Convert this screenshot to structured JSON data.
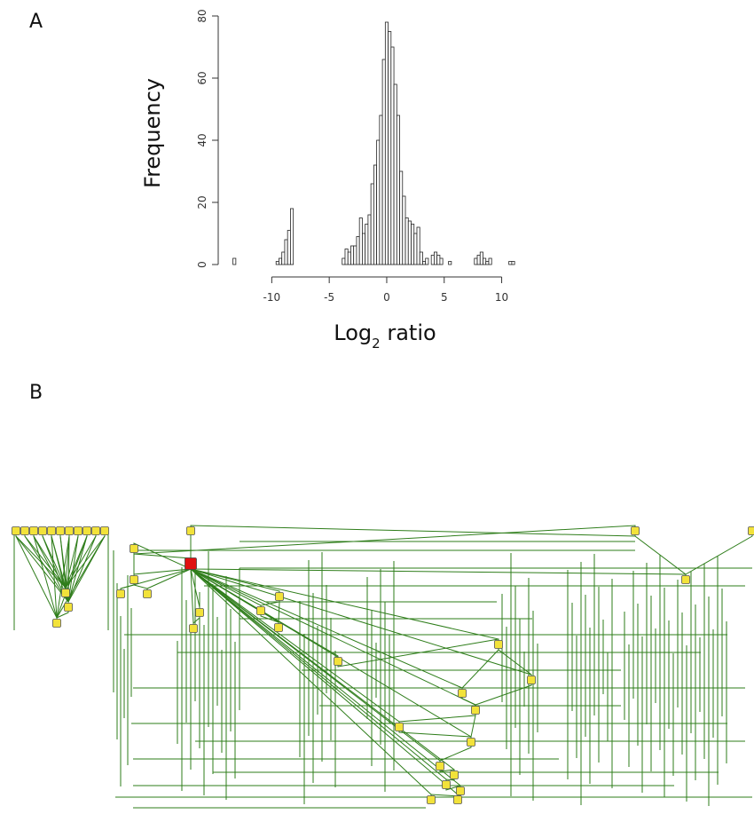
{
  "panels": {
    "a": "A",
    "b": "B"
  },
  "chart_data": [
    {
      "type": "bar",
      "subtype": "histogram",
      "xlabel_base": "Log",
      "xlabel_sub": "2",
      "xlabel_rest": " ratio",
      "ylabel": "Frequency",
      "xlim": [
        -13.5,
        11.5
      ],
      "ylim": [
        0,
        80
      ],
      "xticks": [
        -10,
        -5,
        0,
        5,
        10
      ],
      "yticks": [
        0,
        20,
        40,
        60,
        80
      ],
      "grid": false,
      "bin_width": 0.25,
      "bins": [
        {
          "x": -13.25,
          "y": 2
        },
        {
          "x": -9.5,
          "y": 1
        },
        {
          "x": -9.25,
          "y": 2
        },
        {
          "x": -9.0,
          "y": 4
        },
        {
          "x": -8.75,
          "y": 8
        },
        {
          "x": -8.5,
          "y": 11
        },
        {
          "x": -8.25,
          "y": 18
        },
        {
          "x": -3.75,
          "y": 2
        },
        {
          "x": -3.5,
          "y": 5
        },
        {
          "x": -3.25,
          "y": 4
        },
        {
          "x": -3.0,
          "y": 6
        },
        {
          "x": -2.75,
          "y": 6
        },
        {
          "x": -2.5,
          "y": 9
        },
        {
          "x": -2.25,
          "y": 15
        },
        {
          "x": -2.0,
          "y": 10
        },
        {
          "x": -1.75,
          "y": 13
        },
        {
          "x": -1.5,
          "y": 16
        },
        {
          "x": -1.25,
          "y": 26
        },
        {
          "x": -1.0,
          "y": 32
        },
        {
          "x": -0.75,
          "y": 40
        },
        {
          "x": -0.5,
          "y": 48
        },
        {
          "x": -0.25,
          "y": 66
        },
        {
          "x": 0.0,
          "y": 78
        },
        {
          "x": 0.25,
          "y": 75
        },
        {
          "x": 0.5,
          "y": 70
        },
        {
          "x": 0.75,
          "y": 58
        },
        {
          "x": 1.0,
          "y": 48
        },
        {
          "x": 1.25,
          "y": 30
        },
        {
          "x": 1.5,
          "y": 22
        },
        {
          "x": 1.75,
          "y": 15
        },
        {
          "x": 2.0,
          "y": 14
        },
        {
          "x": 2.25,
          "y": 13
        },
        {
          "x": 2.5,
          "y": 10
        },
        {
          "x": 2.75,
          "y": 12
        },
        {
          "x": 3.0,
          "y": 4
        },
        {
          "x": 3.25,
          "y": 1
        },
        {
          "x": 3.5,
          "y": 2
        },
        {
          "x": 4.0,
          "y": 3
        },
        {
          "x": 4.25,
          "y": 4
        },
        {
          "x": 4.5,
          "y": 3
        },
        {
          "x": 4.75,
          "y": 2
        },
        {
          "x": 5.5,
          "y": 1
        },
        {
          "x": 7.75,
          "y": 2
        },
        {
          "x": 8.0,
          "y": 3
        },
        {
          "x": 8.25,
          "y": 4
        },
        {
          "x": 8.5,
          "y": 2
        },
        {
          "x": 8.75,
          "y": 1
        },
        {
          "x": 9.0,
          "y": 2
        },
        {
          "x": 10.75,
          "y": 1
        },
        {
          "x": 11.0,
          "y": 1
        }
      ]
    }
  ],
  "network": {
    "type": "directed-graph",
    "node_color": "#f2e23a",
    "highlight_color": "#e01010",
    "edge_color": "#2e7d1a"
  }
}
